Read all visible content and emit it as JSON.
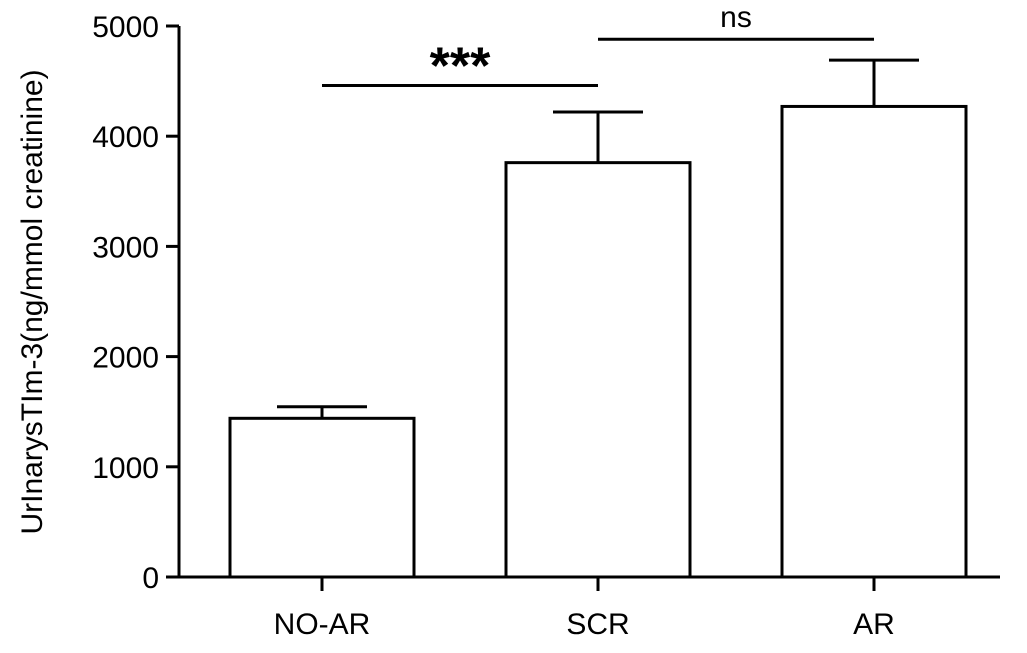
{
  "chart_data": {
    "type": "bar",
    "title": "",
    "xlabel": "",
    "ylabel": "UrInarysTIm-3(ng/mmol creatinine)",
    "categories": [
      "NO-AR",
      "SCR",
      "AR"
    ],
    "values": [
      1440,
      3760,
      4270
    ],
    "error_upper": [
      1545,
      4220,
      4690
    ],
    "ylim": [
      0,
      5000
    ],
    "yticks": [
      0,
      1000,
      2000,
      3000,
      4000,
      5000
    ],
    "ytick_labels": [
      "0",
      "1000",
      "2000",
      "3000",
      "4000",
      "5000"
    ],
    "grid": false,
    "legend": "none",
    "bar_fill": "#ffffff",
    "bar_stroke": "#000000",
    "significance": [
      {
        "from": 0,
        "to": 1,
        "label": "***",
        "y": 4460
      },
      {
        "from": 1,
        "to": 2,
        "label": "ns",
        "y": 4880
      }
    ]
  }
}
